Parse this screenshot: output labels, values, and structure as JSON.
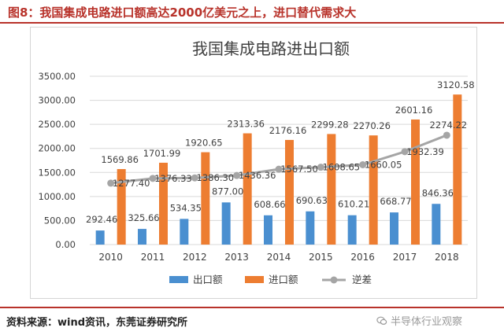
{
  "figure_title": "图8：我国集成电路进口额高达2000亿美元之上，进口替代需求大",
  "source": "资料来源：wind资讯，东莞证券研究所",
  "watermark": "半导体行业观察",
  "chart_data": {
    "type": "bar",
    "title": "我国集成电路进出口额",
    "xlabel": "",
    "ylabel": "",
    "ylim": [
      0,
      3500
    ],
    "yticks": [
      "0.00",
      "500.00",
      "1000.00",
      "1500.00",
      "2000.00",
      "2500.00",
      "3000.00",
      "3500.00"
    ],
    "grid": true,
    "legend_position": "bottom",
    "categories": [
      "2010",
      "2011",
      "2012",
      "2013",
      "2014",
      "2015",
      "2016",
      "2017",
      "2018"
    ],
    "series": [
      {
        "name": "出口额",
        "type": "bar",
        "color": "#4a8fd0",
        "values": [
          292.46,
          325.66,
          534.35,
          877.0,
          608.66,
          690.63,
          610.21,
          668.77,
          846.36
        ],
        "labels": [
          "292.46",
          "325.66",
          "534.35",
          "877.00",
          "608.66",
          "690.63",
          "610.21",
          "668.77",
          "846.36"
        ]
      },
      {
        "name": "进口额",
        "type": "bar",
        "color": "#ed7d31",
        "values": [
          1569.86,
          1701.99,
          1920.65,
          2313.36,
          2176.16,
          2299.28,
          2270.26,
          2601.16,
          3120.58
        ],
        "labels": [
          "1569.86",
          "1701.99",
          "1920.65",
          "2313.36",
          "2176.16",
          "2299.28",
          "2270.26",
          "2601.16",
          "3120.58"
        ]
      },
      {
        "name": "逆差",
        "type": "line",
        "color": "#a5a5a5",
        "values": [
          1277.4,
          1376.33,
          1386.3,
          1436.36,
          1567.5,
          1608.65,
          1660.05,
          1932.39,
          2274.22
        ],
        "labels": [
          "1277.40",
          "1376.33",
          "1386.30",
          "1436.36",
          "1567.50",
          "1608.65",
          "1660.05",
          "1932.39",
          "2274.22"
        ]
      }
    ]
  }
}
